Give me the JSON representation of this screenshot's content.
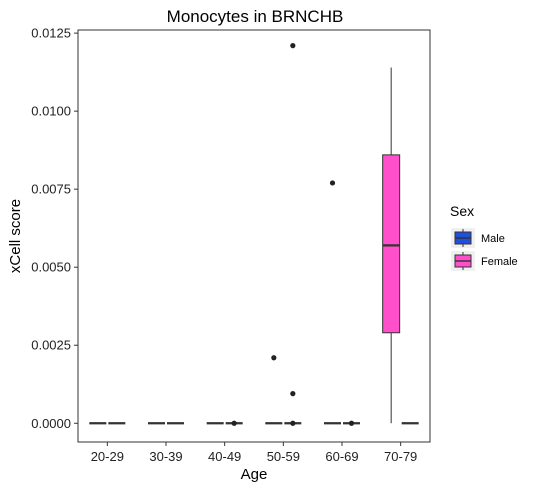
{
  "chart_data": {
    "type": "boxplot",
    "title": "Monocytes in BRNCHB",
    "xlabel": "Age",
    "ylabel": "xCell score",
    "categories": [
      "20-29",
      "30-39",
      "40-49",
      "50-59",
      "60-69",
      "70-79"
    ],
    "ylim": [
      -0.0006,
      0.0126
    ],
    "yticks": [
      0.0,
      0.0025,
      0.005,
      0.0075,
      0.01,
      0.0125
    ],
    "ytick_labels": [
      "0.0000",
      "0.0025",
      "0.0050",
      "0.0075",
      "0.0100",
      "0.0125"
    ],
    "grid": false,
    "legend": {
      "title": "Sex",
      "placement": "right",
      "entries": [
        {
          "name": "Male",
          "color": "#1f4fdb"
        },
        {
          "name": "Female",
          "color": "#ff4fcb"
        }
      ]
    },
    "series": [
      {
        "name": "Male",
        "color": "#1f4fdb",
        "boxes": [
          {
            "category": "20-29",
            "min": 0,
            "q1": 0,
            "median": 0,
            "q3": 0,
            "max": 0,
            "outliers": []
          },
          {
            "category": "30-39",
            "min": 0,
            "q1": 0,
            "median": 0,
            "q3": 0,
            "max": 0,
            "outliers": []
          },
          {
            "category": "40-49",
            "min": 0,
            "q1": 0,
            "median": 0,
            "q3": 0,
            "max": 0,
            "outliers": []
          },
          {
            "category": "50-59",
            "min": 0,
            "q1": 0,
            "median": 0,
            "q3": 0,
            "max": 0,
            "outliers": [
              0.0021
            ]
          },
          {
            "category": "60-69",
            "min": 0,
            "q1": 0,
            "median": 0,
            "q3": 0,
            "max": 0,
            "outliers": [
              0.0077
            ]
          },
          {
            "category": "70-79",
            "min": 0.0,
            "q1": 0.0029,
            "median": 0.0057,
            "q3": 0.0086,
            "max": 0.0114,
            "outliers": [],
            "fill": "#ff4fcb"
          }
        ]
      },
      {
        "name": "Female",
        "color": "#ff4fcb",
        "boxes": [
          {
            "category": "20-29",
            "min": 0,
            "q1": 0,
            "median": 0,
            "q3": 0,
            "max": 0,
            "outliers": []
          },
          {
            "category": "30-39",
            "min": 0,
            "q1": 0,
            "median": 0,
            "q3": 0,
            "max": 0,
            "outliers": []
          },
          {
            "category": "40-49",
            "min": 0,
            "q1": 0,
            "median": 0,
            "q3": 0,
            "max": 0,
            "outliers": [
              0.0
            ]
          },
          {
            "category": "50-59",
            "min": 0,
            "q1": 0,
            "median": 0,
            "q3": 0,
            "max": 0,
            "outliers": [
              0.0121,
              0.00095,
              0.0
            ]
          },
          {
            "category": "60-69",
            "min": 0,
            "q1": 0,
            "median": 0,
            "q3": 0,
            "max": 0,
            "outliers": [
              0.0
            ]
          },
          {
            "category": "70-79",
            "min": 0,
            "q1": 0,
            "median": 0,
            "q3": 0,
            "max": 0,
            "outliers": []
          }
        ]
      }
    ]
  }
}
